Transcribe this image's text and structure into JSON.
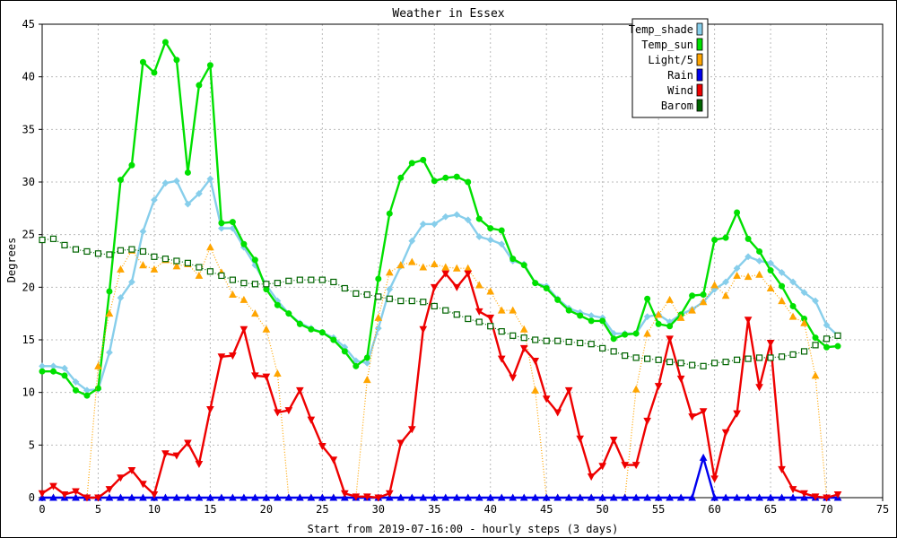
{
  "chart_data": {
    "type": "line",
    "title": "Weather in Essex",
    "xlabel": "Start from 2019-07-16:00 - hourly steps (3 days)",
    "ylabel": "Degrees",
    "xlim": [
      0,
      75
    ],
    "ylim": [
      0,
      45
    ],
    "x_ticks": [
      "0",
      "5",
      "10",
      "15",
      "20",
      "25",
      "30",
      "35",
      "40",
      "45",
      "50",
      "55",
      "60",
      "65",
      "70",
      "75"
    ],
    "y_ticks": [
      "0",
      "5",
      "10",
      "15",
      "20",
      "25",
      "30",
      "35",
      "40",
      "45"
    ],
    "grid": true,
    "legend_position": "top-right",
    "series": [
      {
        "name": "Temp_shade",
        "color": "#87CEEB",
        "marker": "diamond",
        "style": "solid",
        "values": [
          12.5,
          12.5,
          12.3,
          11.0,
          10.2,
          10.3,
          13.8,
          19.0,
          20.5,
          25.3,
          28.3,
          29.9,
          30.1,
          27.9,
          28.9,
          30.3,
          25.6,
          25.6,
          23.8,
          22.1,
          20.2,
          18.7,
          17.5,
          16.6,
          16.1,
          15.7,
          15.2,
          14.3,
          13.0,
          12.8,
          16.1,
          19.8,
          22.0,
          24.4,
          26.0,
          26.0,
          26.7,
          26.9,
          26.4,
          24.8,
          24.5,
          24.1,
          22.5,
          22.2,
          20.4,
          20.1,
          18.9,
          18.0,
          17.6,
          17.3,
          17.1,
          15.6,
          15.6,
          15.6,
          17.2,
          17.4,
          16.7,
          17.4,
          17.9,
          18.6,
          19.8,
          20.5,
          21.8,
          22.9,
          22.5,
          22.3,
          21.4,
          20.5,
          19.5,
          18.7,
          16.4,
          15.4
        ]
      },
      {
        "name": "Temp_sun",
        "color": "#00E000",
        "marker": "circle",
        "style": "solid",
        "values": [
          12.0,
          12.0,
          11.6,
          10.2,
          9.7,
          10.4,
          19.6,
          30.2,
          31.6,
          41.4,
          40.4,
          43.3,
          41.6,
          30.9,
          39.2,
          41.1,
          26.1,
          26.2,
          24.1,
          22.6,
          19.8,
          18.3,
          17.5,
          16.5,
          16.0,
          15.7,
          15.0,
          13.9,
          12.5,
          13.3,
          20.8,
          27.0,
          30.4,
          31.8,
          32.1,
          30.1,
          30.4,
          30.5,
          30.0,
          26.5,
          25.6,
          25.4,
          22.7,
          22.1,
          20.4,
          19.9,
          18.8,
          17.8,
          17.3,
          16.8,
          16.8,
          15.1,
          15.5,
          15.6,
          18.9,
          16.5,
          16.3,
          17.4,
          19.2,
          19.3,
          24.5,
          24.7,
          27.1,
          24.6,
          23.4,
          21.6,
          20.1,
          18.2,
          17.0,
          15.2,
          14.3,
          14.4
        ]
      },
      {
        "name": "Light/5",
        "color": "#FFA500",
        "marker": "triangle-up",
        "style": "dotted",
        "values": [
          0,
          0,
          0,
          0,
          0,
          12.5,
          17.5,
          21.7,
          23.5,
          22.1,
          21.7,
          22.6,
          22.0,
          22.2,
          21.1,
          23.8,
          21.4,
          19.3,
          18.8,
          17.5,
          16.0,
          11.8,
          0,
          0,
          0,
          0,
          0,
          0,
          0,
          11.2,
          17.1,
          21.4,
          22.1,
          22.4,
          21.9,
          22.2,
          21.9,
          21.8,
          21.8,
          20.2,
          19.6,
          17.8,
          17.8,
          16.0,
          10.2,
          0,
          0,
          0,
          0,
          0,
          0,
          0,
          0,
          10.3,
          15.6,
          17.4,
          18.8,
          17.1,
          17.8,
          18.6,
          20.2,
          19.2,
          21.1,
          21.0,
          21.2,
          19.9,
          18.7,
          17.2,
          16.6,
          11.6,
          0,
          0
        ]
      },
      {
        "name": "Rain",
        "color": "#0000EE",
        "marker": "triangle-up",
        "style": "solid",
        "values": [
          0,
          0,
          0,
          0,
          0,
          0,
          0,
          0,
          0,
          0,
          0,
          0,
          0,
          0,
          0,
          0,
          0,
          0,
          0,
          0,
          0,
          0,
          0,
          0,
          0,
          0,
          0,
          0,
          0,
          0,
          0,
          0,
          0,
          0,
          0,
          0,
          0,
          0,
          0,
          0,
          0,
          0,
          0,
          0,
          0,
          0,
          0,
          0,
          0,
          0,
          0,
          0,
          0,
          0,
          0,
          0,
          0,
          0,
          0,
          3.8,
          0,
          0,
          0,
          0,
          0,
          0,
          0,
          0,
          0,
          0,
          0,
          0
        ]
      },
      {
        "name": "Wind",
        "color": "#EE0000",
        "marker": "triangle-down",
        "style": "solid",
        "values": [
          0.4,
          1.1,
          0.3,
          0.6,
          0.0,
          0.0,
          0.8,
          1.9,
          2.6,
          1.3,
          0.3,
          4.2,
          4.0,
          5.2,
          3.2,
          8.4,
          13.4,
          13.5,
          16.0,
          11.6,
          11.5,
          8.1,
          8.3,
          10.2,
          7.4,
          4.9,
          3.6,
          0.4,
          0.1,
          0.1,
          0.0,
          0.4,
          5.2,
          6.5,
          16.0,
          20.0,
          21.3,
          20.0,
          21.3,
          17.7,
          17.1,
          13.2,
          11.4,
          14.2,
          13.0,
          9.4,
          8.1,
          10.2,
          5.6,
          2.0,
          3.0,
          5.5,
          3.1,
          3.1,
          7.3,
          10.6,
          15.1,
          11.3,
          7.7,
          8.2,
          1.8,
          6.2,
          8.0,
          16.9,
          10.5,
          14.7,
          2.7,
          0.8,
          0.4,
          0.1,
          0.0,
          0.3
        ]
      },
      {
        "name": "Barom",
        "color": "#006400",
        "marker": "square",
        "style": "dotted",
        "values": [
          24.5,
          24.6,
          24.0,
          23.6,
          23.4,
          23.2,
          23.1,
          23.5,
          23.6,
          23.4,
          22.9,
          22.7,
          22.5,
          22.3,
          21.9,
          21.5,
          21.1,
          20.7,
          20.4,
          20.3,
          20.3,
          20.4,
          20.6,
          20.7,
          20.7,
          20.7,
          20.5,
          19.9,
          19.4,
          19.3,
          19.1,
          18.9,
          18.7,
          18.7,
          18.6,
          18.2,
          17.8,
          17.4,
          17.0,
          16.7,
          16.3,
          15.8,
          15.4,
          15.2,
          15.0,
          14.9,
          14.9,
          14.8,
          14.7,
          14.6,
          14.2,
          13.9,
          13.5,
          13.3,
          13.2,
          13.1,
          12.9,
          12.8,
          12.6,
          12.5,
          12.8,
          12.9,
          13.1,
          13.2,
          13.3,
          13.3,
          13.4,
          13.6,
          13.9,
          14.5,
          15.1,
          15.4
        ]
      }
    ]
  }
}
